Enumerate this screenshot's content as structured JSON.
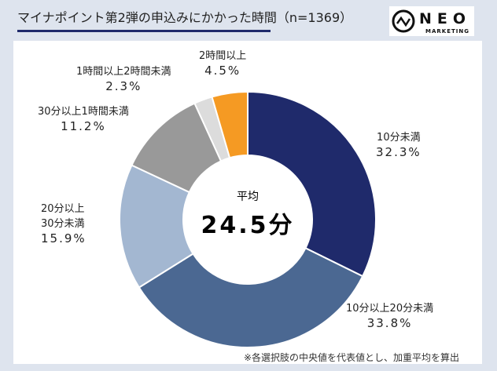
{
  "title": "マイナポイント第2弾の申込みにかかった時間（n=1369）",
  "logo": {
    "name": "NEO",
    "sub": "MARKETING"
  },
  "chart_data": {
    "type": "pie",
    "donut": true,
    "title": "マイナポイント第2弾の申込みにかかった時間（n=1369）",
    "slices": [
      {
        "label": "10分未満",
        "value": 32.3,
        "text": "32.3%",
        "color": "#1f2a6b"
      },
      {
        "label": "10分以上20分未満",
        "value": 33.8,
        "text": "33.8%",
        "color": "#4b6892"
      },
      {
        "label": "20分以上 30分未満",
        "value": 15.9,
        "text": "15.9%",
        "color": "#a3b7d1"
      },
      {
        "label": "30分以上1時間未満",
        "value": 11.2,
        "text": "11.2%",
        "color": "#999999"
      },
      {
        "label": "1時間以上2時間未満",
        "value": 2.3,
        "text": "2.3%",
        "color": "#dcdcdc"
      },
      {
        "label": "2時間以上",
        "value": 4.5,
        "text": "4.5%",
        "color": "#f59a23"
      }
    ],
    "center": {
      "label": "平均",
      "value": "24.5分"
    }
  },
  "note": "※各選択肢の中央値を代表値とし、加重平均を算出"
}
